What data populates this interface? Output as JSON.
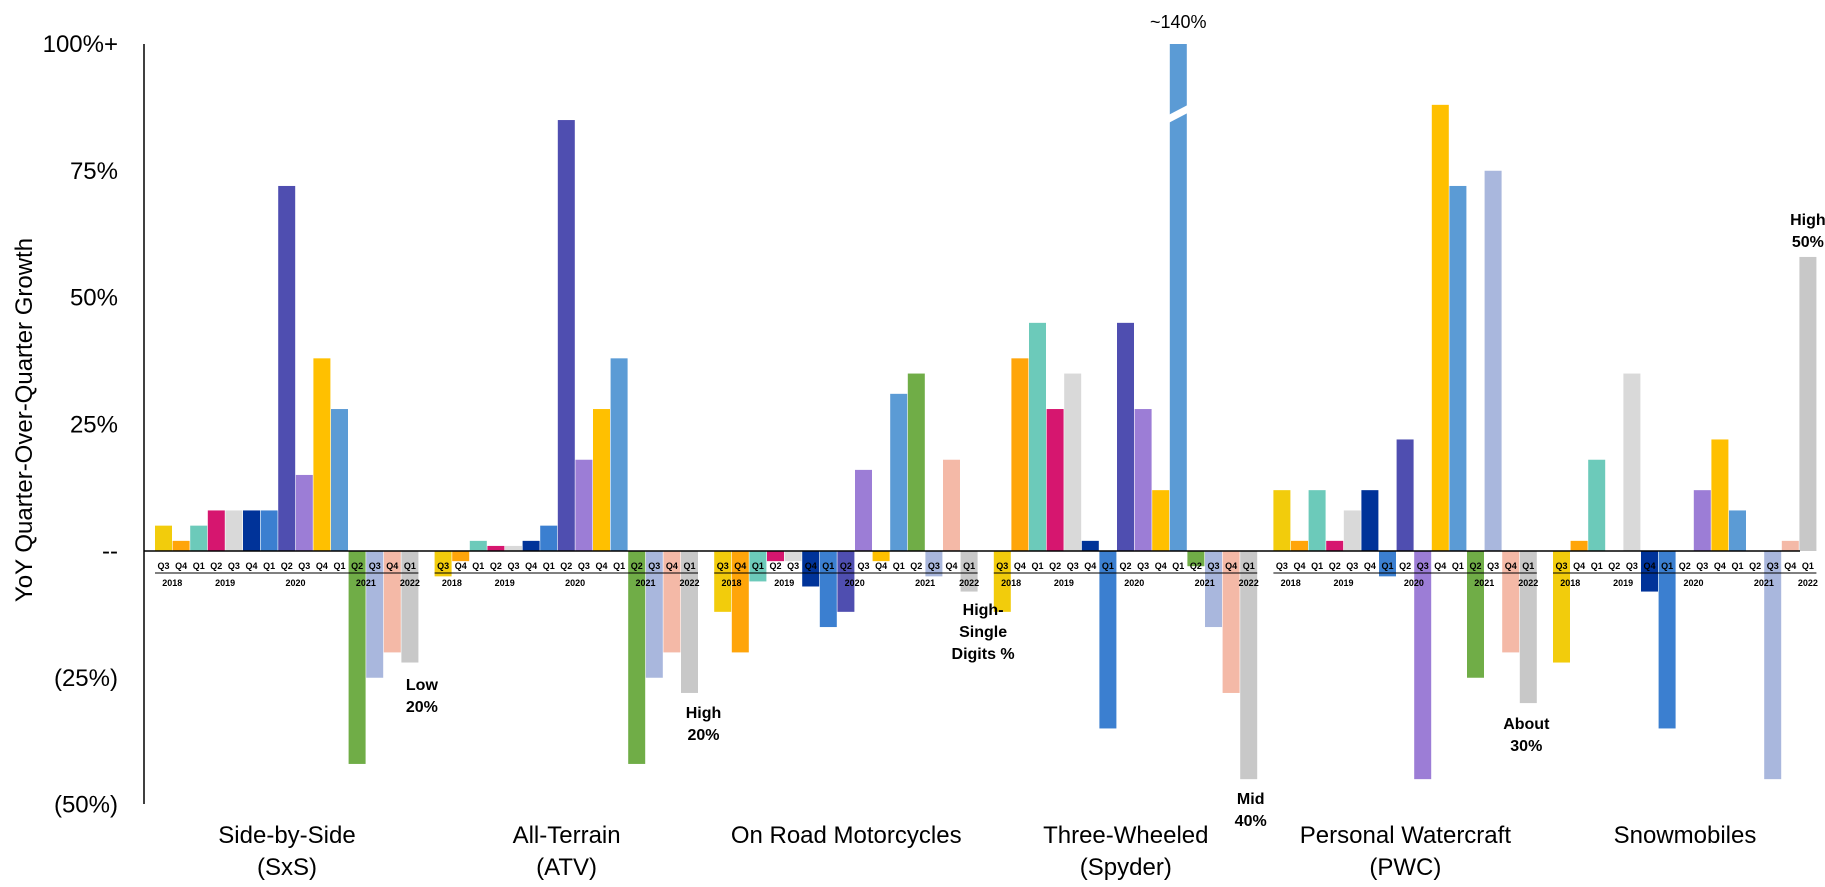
{
  "chart_data": {
    "type": "bar",
    "ylabel": "YoY Quarter-Over-Quarter Growth",
    "yticks": [
      {
        "value": 100,
        "label": "100%+"
      },
      {
        "value": 75,
        "label": "75%"
      },
      {
        "value": 50,
        "label": "50%"
      },
      {
        "value": 25,
        "label": "25%"
      },
      {
        "value": 0,
        "label": "--"
      },
      {
        "value": -25,
        "label": "(25%)"
      },
      {
        "value": -50,
        "label": "(50%)"
      }
    ],
    "ylim": [
      -50,
      100
    ],
    "quarters": [
      "Q3",
      "Q4",
      "Q1",
      "Q2",
      "Q3",
      "Q4",
      "Q1",
      "Q2",
      "Q3",
      "Q4",
      "Q1",
      "Q2",
      "Q3",
      "Q4",
      "Q1"
    ],
    "years": [
      {
        "label": "2018",
        "start": 0,
        "end": 1
      },
      {
        "label": "2019",
        "start": 2,
        "end": 5
      },
      {
        "label": "2020",
        "start": 6,
        "end": 9
      },
      {
        "label": "2021",
        "start": 10,
        "end": 13
      },
      {
        "label": "2022",
        "start": 14,
        "end": 14
      }
    ],
    "quarter_colors": [
      "#F2CC0C",
      "#FFA50A",
      "#6CCABA",
      "#D6166F",
      "#D9D9D9",
      "#003399",
      "#3B7FD0",
      "#4F4EB0",
      "#9C7DD6",
      "#FFC000",
      "#5B9BD5",
      "#70AD47",
      "#A9B7DD",
      "#F4B9A7",
      "#C8C8C8"
    ],
    "categories": [
      {
        "label_line1": "Side-by-Side",
        "label_line2": "(SxS)",
        "values": [
          5,
          2,
          5,
          8,
          8,
          8,
          8,
          72,
          15,
          38,
          28,
          -42,
          -25,
          -20,
          -22
        ]
      },
      {
        "label_line1": "All-Terrain",
        "label_line2": "(ATV)",
        "values": [
          -5,
          -2,
          2,
          1,
          1,
          2,
          5,
          85,
          18,
          28,
          38,
          -42,
          -25,
          -20,
          -28
        ]
      },
      {
        "label_line1": "On Road Motorcycles",
        "label_line2": "",
        "values": [
          -12,
          -20,
          -6,
          -2,
          -2,
          -7,
          -15,
          -12,
          16,
          -2,
          31,
          35,
          -5,
          18,
          -8
        ]
      },
      {
        "label_line1": "Three-Wheeled",
        "label_line2": "(Spyder)",
        "values": [
          -12,
          38,
          45,
          28,
          35,
          2,
          -35,
          45,
          28,
          12,
          140,
          -3,
          -15,
          -28,
          -45
        ]
      },
      {
        "label_line1": "Personal Watercraft",
        "label_line2": "(PWC)",
        "values": [
          12,
          2,
          12,
          2,
          8,
          12,
          -5,
          22,
          -45,
          88,
          72,
          -25,
          75,
          -20,
          -30
        ]
      },
      {
        "label_line1": "Snowmobiles",
        "label_line2": "",
        "values": [
          -22,
          2,
          18,
          0,
          35,
          -8,
          -35,
          0,
          12,
          22,
          8,
          0,
          -45,
          2,
          58
        ]
      }
    ],
    "annotations": [
      {
        "category": 0,
        "index": 14,
        "lines": [
          "Low",
          "20%"
        ]
      },
      {
        "category": 1,
        "index": 14,
        "lines": [
          "High",
          "20%"
        ]
      },
      {
        "category": 2,
        "index": 14,
        "lines": [
          "High-",
          "Single",
          "Digits %"
        ]
      },
      {
        "category": 3,
        "index": 14,
        "lines": [
          "Mid",
          "40%"
        ]
      },
      {
        "category": 4,
        "index": 14,
        "lines": [
          "About",
          "30%"
        ]
      },
      {
        "category": 5,
        "index": 14,
        "lines": [
          "High",
          "50%"
        ]
      }
    ],
    "break_label": "~140%"
  }
}
